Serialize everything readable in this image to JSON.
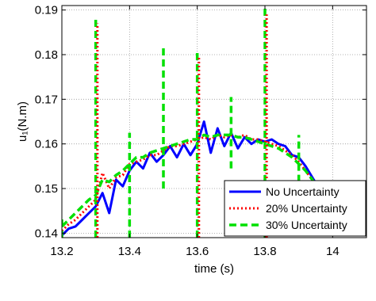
{
  "chart_data": {
    "type": "line",
    "title": "",
    "xlabel": "time (s)",
    "ylabel": "u₁(N.m)",
    "xlim": [
      13.2,
      14.1
    ],
    "ylim": [
      0.139,
      0.191
    ],
    "grid": true,
    "legend_position": "bottom-right",
    "x_ticks": [
      "13.2",
      "13.4",
      "13.6",
      "13.8",
      "14"
    ],
    "x_tick_values": [
      13.2,
      13.4,
      13.6,
      13.8,
      14.0
    ],
    "y_ticks": [
      "0.14",
      "0.15",
      "0.16",
      "0.17",
      "0.18",
      "0.19"
    ],
    "y_tick_values": [
      0.14,
      0.15,
      0.16,
      0.17,
      0.18,
      0.19
    ],
    "series": [
      {
        "name": "No Uncertainty",
        "color": "#0000ff",
        "style": "solid",
        "x": [
          13.2,
          13.22,
          13.24,
          13.26,
          13.28,
          13.3,
          13.32,
          13.34,
          13.36,
          13.38,
          13.4,
          13.42,
          13.44,
          13.46,
          13.48,
          13.5,
          13.52,
          13.54,
          13.56,
          13.58,
          13.6,
          13.62,
          13.64,
          13.66,
          13.68,
          13.7,
          13.72,
          13.74,
          13.76,
          13.78,
          13.8,
          13.82,
          13.84,
          13.86,
          13.88,
          13.9,
          13.92,
          13.94,
          13.96,
          13.98,
          14.0
        ],
        "y": [
          0.1395,
          0.141,
          0.1415,
          0.143,
          0.1445,
          0.146,
          0.149,
          0.1445,
          0.152,
          0.1505,
          0.154,
          0.156,
          0.1545,
          0.158,
          0.156,
          0.1575,
          0.1595,
          0.157,
          0.16,
          0.1575,
          0.16,
          0.165,
          0.158,
          0.1635,
          0.1595,
          0.1625,
          0.159,
          0.1615,
          0.16,
          0.161,
          0.1605,
          0.161,
          0.16,
          0.1595,
          0.1575,
          0.157,
          0.155,
          0.1525,
          0.15,
          0.147,
          0.1435
        ]
      },
      {
        "name": "20% Uncertainty",
        "color": "#ff0000",
        "style": "dotted",
        "x": [
          13.2,
          13.22,
          13.24,
          13.26,
          13.28,
          13.3,
          13.32,
          13.34,
          13.36,
          13.38,
          13.4,
          13.42,
          13.44,
          13.46,
          13.48,
          13.5,
          13.52,
          13.54,
          13.56,
          13.58,
          13.6,
          13.62,
          13.64,
          13.66,
          13.68,
          13.7,
          13.72,
          13.74,
          13.76,
          13.78,
          13.8,
          13.82,
          13.84,
          13.86,
          13.88,
          13.9,
          13.92,
          13.94,
          13.96,
          13.98,
          14.0
        ],
        "y": [
          0.1405,
          0.142,
          0.143,
          0.1445,
          0.146,
          0.1475,
          0.1535,
          0.15,
          0.1525,
          0.153,
          0.1555,
          0.156,
          0.1565,
          0.1575,
          0.1575,
          0.1585,
          0.1595,
          0.1595,
          0.16,
          0.1605,
          0.161,
          0.1615,
          0.161,
          0.162,
          0.1615,
          0.162,
          0.1615,
          0.162,
          0.161,
          0.161,
          0.1605,
          0.16,
          0.1595,
          0.1585,
          0.1575,
          0.156,
          0.154,
          0.152,
          0.1495,
          0.147,
          0.1445
        ]
      },
      {
        "name": "30% Uncertainty",
        "color": "#00e000",
        "style": "dashed",
        "x": [
          13.2,
          13.22,
          13.24,
          13.26,
          13.28,
          13.3,
          13.32,
          13.34,
          13.36,
          13.38,
          13.4,
          13.42,
          13.44,
          13.46,
          13.48,
          13.5,
          13.52,
          13.54,
          13.56,
          13.58,
          13.6,
          13.62,
          13.64,
          13.66,
          13.68,
          13.7,
          13.72,
          13.74,
          13.76,
          13.78,
          13.8,
          13.82,
          13.84,
          13.86,
          13.88,
          13.9,
          13.92,
          13.94,
          13.96,
          13.98,
          14.0
        ],
        "y": [
          0.1415,
          0.143,
          0.1445,
          0.146,
          0.1475,
          0.1485,
          0.152,
          0.1515,
          0.153,
          0.154,
          0.1555,
          0.157,
          0.157,
          0.158,
          0.1585,
          0.159,
          0.1595,
          0.16,
          0.1605,
          0.161,
          0.161,
          0.162,
          0.1615,
          0.162,
          0.162,
          0.162,
          0.1615,
          0.1615,
          0.161,
          0.1605,
          0.16,
          0.1595,
          0.159,
          0.158,
          0.157,
          0.1555,
          0.154,
          0.152,
          0.1495,
          0.147,
          0.145
        ]
      }
    ],
    "spikes": [
      {
        "series": "30% Uncertainty",
        "x": 13.2,
        "min": 0.139,
        "max": 0.1435
      },
      {
        "series": "30% Uncertainty",
        "x": 13.3,
        "min": 0.139,
        "max": 0.1885
      },
      {
        "series": "30% Uncertainty",
        "x": 13.4,
        "min": 0.139,
        "max": 0.1625
      },
      {
        "series": "30% Uncertainty",
        "x": 13.5,
        "min": 0.15,
        "max": 0.1815
      },
      {
        "series": "30% Uncertainty",
        "x": 13.6,
        "min": 0.139,
        "max": 0.1805
      },
      {
        "series": "30% Uncertainty",
        "x": 13.7,
        "min": 0.1545,
        "max": 0.1705
      },
      {
        "series": "30% Uncertainty",
        "x": 13.8,
        "min": 0.139,
        "max": 0.191
      },
      {
        "series": "30% Uncertainty",
        "x": 13.9,
        "min": 0.149,
        "max": 0.162
      },
      {
        "series": "20% Uncertainty",
        "x": 13.305,
        "min": 0.139,
        "max": 0.187
      },
      {
        "series": "20% Uncertainty",
        "x": 13.605,
        "min": 0.139,
        "max": 0.1795
      },
      {
        "series": "20% Uncertainty",
        "x": 13.805,
        "min": 0.139,
        "max": 0.189
      }
    ]
  }
}
